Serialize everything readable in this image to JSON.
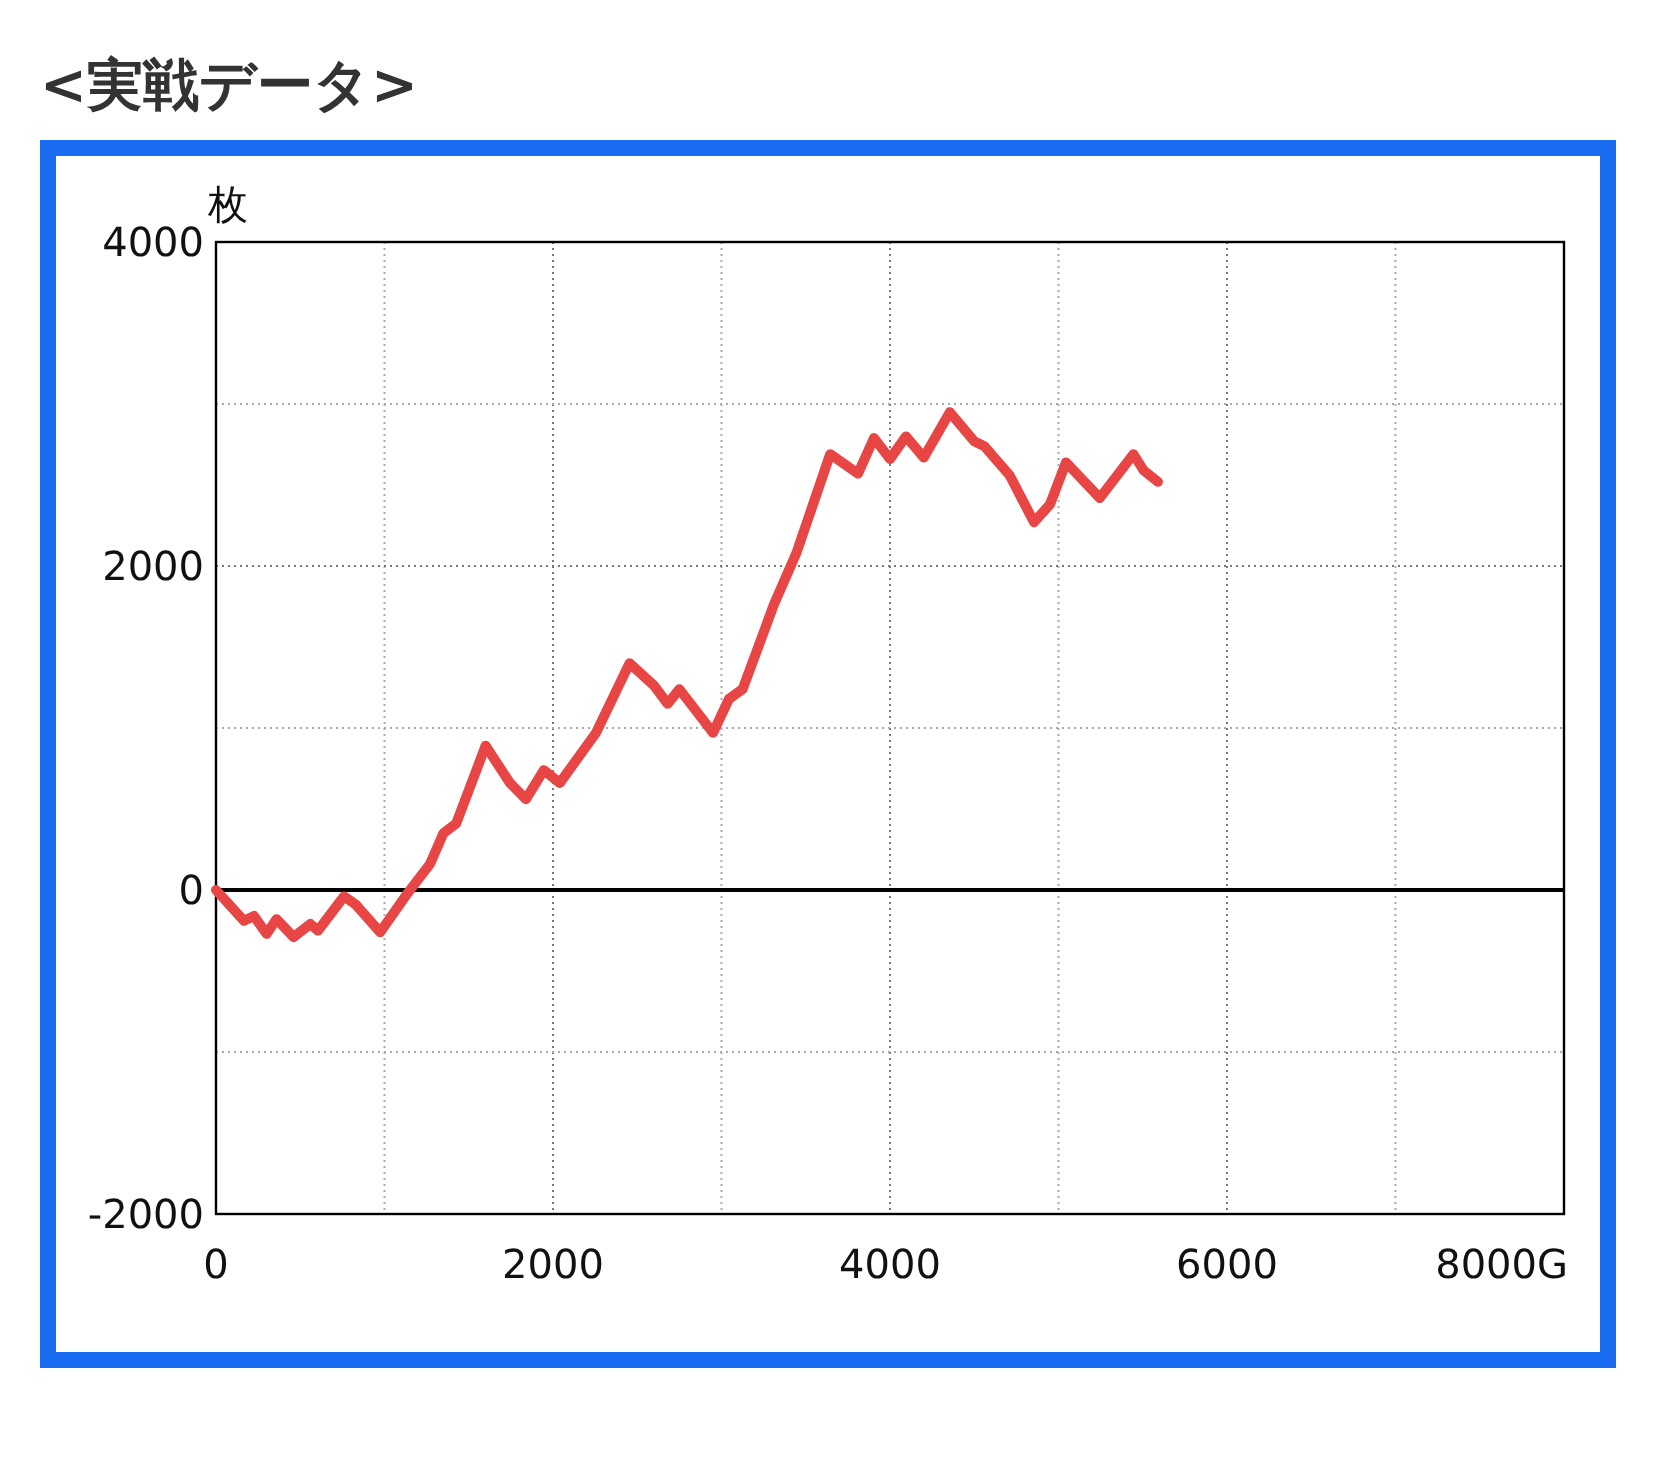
{
  "chart_data": {
    "type": "line",
    "title": "<実戦データ>",
    "ylabel": "枚",
    "xlim": [
      0,
      8000
    ],
    "ylim": [
      -2000,
      4000
    ],
    "xticks": [
      0,
      {
        "value": 1000,
        "label": null
      },
      2000,
      {
        "value": 3000,
        "label": null
      },
      4000,
      {
        "value": 5000,
        "label": null
      },
      6000,
      {
        "value": 7000,
        "label": null
      },
      {
        "value": 8000,
        "label": "8000G"
      }
    ],
    "yticks": [
      -2000,
      {
        "value": -1000,
        "label": null
      },
      0,
      {
        "value": 1000,
        "label": null
      },
      2000,
      {
        "value": 3000,
        "label": null
      },
      4000
    ],
    "grid": true,
    "marker": "none",
    "line_style": "solid",
    "ref_lines": [
      {
        "axis": "y",
        "value": 0,
        "color": "#000000",
        "line_style": "solid"
      }
    ],
    "series": [
      {
        "color": "#e84545",
        "x": [
          0,
          166,
          225,
          300,
          360,
          460,
          560,
          605,
          760,
          830,
          975,
          1130,
          1270,
          1350,
          1425,
          1600,
          1745,
          1840,
          1945,
          2040,
          2255,
          2455,
          2600,
          2680,
          2750,
          2950,
          3045,
          3125,
          3310,
          3445,
          3645,
          3810,
          3905,
          4000,
          4095,
          4200,
          4355,
          4500,
          4560,
          4710,
          4855,
          4950,
          5045,
          5245,
          5445,
          5505,
          5590
        ],
        "values": [
          0,
          -190,
          -160,
          -270,
          -180,
          -290,
          -210,
          -250,
          -40,
          -90,
          -260,
          -30,
          160,
          350,
          410,
          890,
          660,
          560,
          740,
          660,
          970,
          1400,
          1260,
          1150,
          1240,
          970,
          1180,
          1240,
          1760,
          2080,
          2690,
          2570,
          2790,
          2660,
          2800,
          2670,
          2950,
          2770,
          2740,
          2560,
          2270,
          2380,
          2640,
          2420,
          2690,
          2590,
          2520
        ]
      }
    ]
  }
}
